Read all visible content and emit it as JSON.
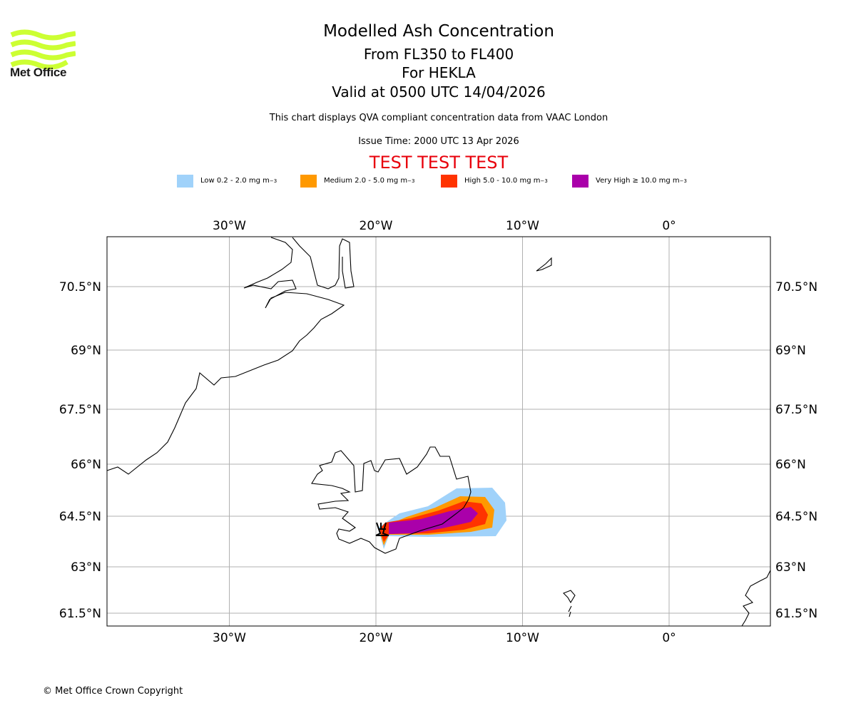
{
  "brand": {
    "name": "Met Office",
    "logo_color": "#ccff33"
  },
  "header": {
    "title": "Modelled Ash Concentration",
    "levels": "From FL350 to FL400",
    "volcano": "For HEKLA",
    "valid": "Valid at 0500 UTC 14/04/2026",
    "description": "This chart displays QVA compliant concentration data from VAAC London",
    "issue_time": "Issue Time: 2000 UTC 13 Apr 2026",
    "test_banner": "TEST TEST TEST"
  },
  "legend": [
    {
      "label": "Low 0.2 - 2.0 mg m",
      "unit_exp": "−3",
      "color": "#a0d2fa"
    },
    {
      "label": "Medium 2.0 - 5.0 mg m",
      "unit_exp": "−3",
      "color": "#ff9900"
    },
    {
      "label": "High 5.0 - 10.0 mg m",
      "unit_exp": "−3",
      "color": "#ff3300"
    },
    {
      "label": "Very High ≥ 10.0 mg m",
      "unit_exp": "−3",
      "color": "#aa00aa"
    }
  ],
  "map": {
    "extent": {
      "lon": [
        -38.4,
        7.0
      ],
      "lat": [
        61.2,
        71.4
      ]
    },
    "lon_ticks": [
      {
        "value": -30,
        "label": "30°W"
      },
      {
        "value": -20,
        "label": "20°W"
      },
      {
        "value": -10,
        "label": "10°W"
      },
      {
        "value": 0,
        "label": "0°"
      }
    ],
    "lat_ticks": [
      {
        "value": 70.5,
        "label": "70.5°N"
      },
      {
        "value": 69,
        "label": "69°N"
      },
      {
        "value": 67.5,
        "label": "67.5°N"
      },
      {
        "value": 66,
        "label": "66°N"
      },
      {
        "value": 64.5,
        "label": "64.5°N"
      },
      {
        "value": 63,
        "label": "63°N"
      },
      {
        "value": 61.5,
        "label": "61.5°N"
      }
    ],
    "volcano": {
      "name": "HEKLA",
      "lon": -19.7,
      "lat": 63.98
    }
  },
  "footer": {
    "copyright": "© Met Office Crown Copyright"
  }
}
